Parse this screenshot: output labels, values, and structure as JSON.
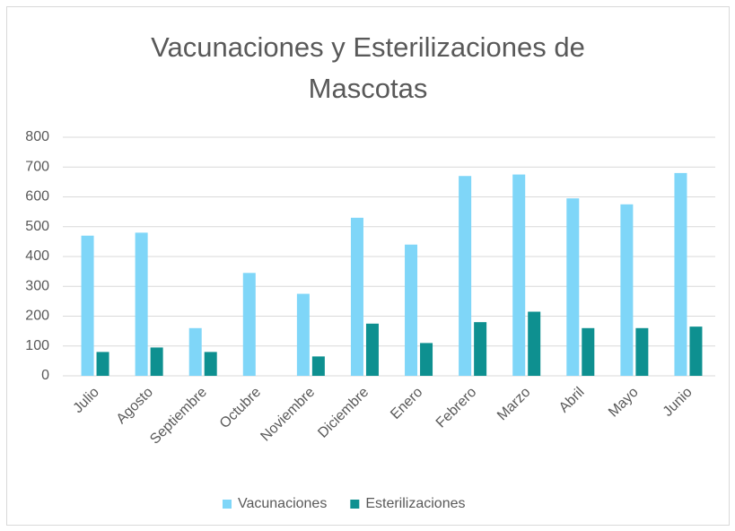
{
  "chart_data": {
    "type": "bar",
    "title": "Vacunaciones y Esterilizaciones de Mascotas",
    "categories": [
      "Julio",
      "Agosto",
      "Septiembre",
      "Octubre",
      "Noviembre",
      "Diciembre",
      "Enero",
      "Febrero",
      "Marzo",
      "Abril",
      "Mayo",
      "Junio"
    ],
    "series": [
      {
        "name": "Vacunaciones",
        "color": "#7fd6f8",
        "values": [
          470,
          480,
          160,
          345,
          275,
          530,
          440,
          670,
          675,
          595,
          575,
          680
        ]
      },
      {
        "name": "Esterilizaciones",
        "color": "#0e9090",
        "values": [
          80,
          95,
          80,
          0,
          65,
          175,
          110,
          180,
          215,
          160,
          160,
          165
        ]
      }
    ],
    "ylim": [
      0,
      800
    ],
    "yticks": [
      0,
      100,
      200,
      300,
      400,
      500,
      600,
      700,
      800
    ],
    "grid": true,
    "legend": "bottom"
  }
}
